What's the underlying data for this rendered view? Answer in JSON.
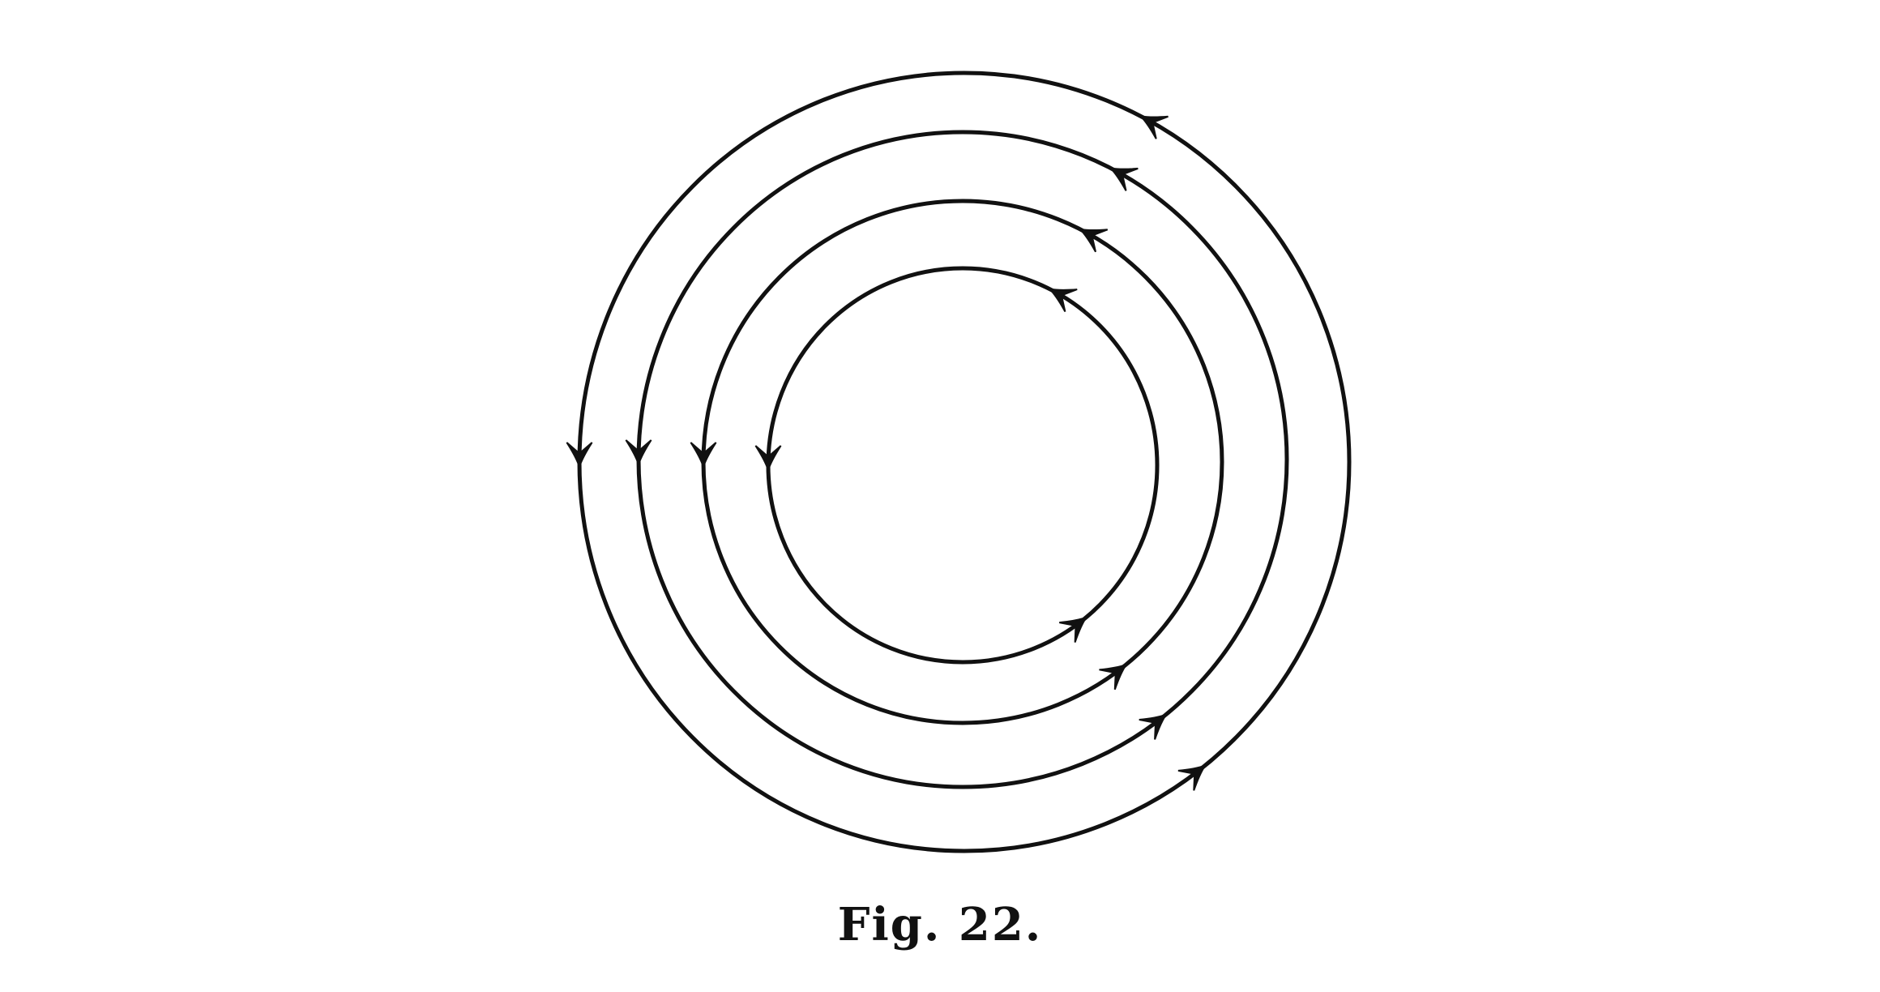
{
  "figure": {
    "caption": "Fig. 22.",
    "stroke_color": "#111111",
    "background_color": "#ffffff",
    "description_kind": "concentric circles with direction arrows",
    "rings": [
      {
        "id": "ring-1",
        "arrows": [
          "left-pointing-down",
          "upper-right",
          "lower-right"
        ]
      },
      {
        "id": "ring-2",
        "arrows": [
          "left-pointing-down",
          "upper-right",
          "lower-right"
        ]
      },
      {
        "id": "ring-3",
        "arrows": [
          "left-pointing-down",
          "upper-right",
          "lower-right"
        ]
      },
      {
        "id": "ring-4",
        "arrows": [
          "left-pointing-down",
          "upper-right",
          "lower-right"
        ]
      }
    ],
    "flow_direction": "counterclockwise"
  }
}
